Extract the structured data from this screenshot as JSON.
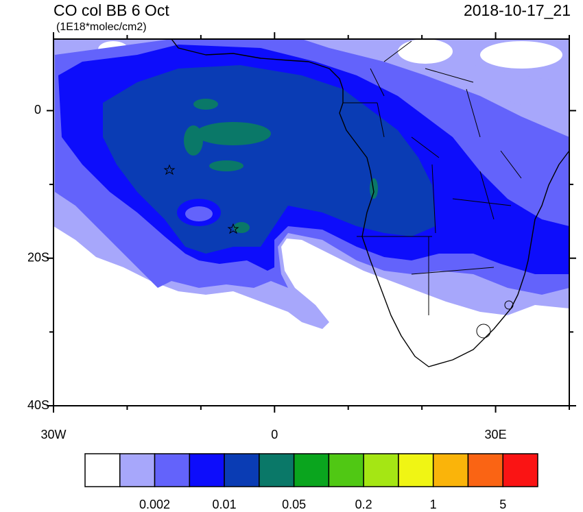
{
  "title": "CO col BB 6 Oct",
  "units": "(1E18*molec/cm2)",
  "valid_time": "2018-10-17_21",
  "map": {
    "xlim": [
      -30,
      40
    ],
    "ylim": [
      -40,
      9.7
    ],
    "xticks": [
      {
        "value": -30,
        "label": "30W"
      },
      0,
      {
        "value": 30,
        "label": "30E"
      }
    ],
    "yticks": [
      0,
      {
        "value": -20,
        "label": "20S"
      },
      {
        "value": -40,
        "label": "40S"
      }
    ],
    "xminorticks": [
      -20,
      -10,
      10,
      20,
      40
    ],
    "yminorticks": [
      -10,
      -30
    ]
  },
  "colorbar": {
    "colors": [
      "#ffffff",
      "#a7a7fb",
      "#6363fb",
      "#0d0dfb",
      "#0a3cb4",
      "#0a7868",
      "#0aa51e",
      "#50c814",
      "#a5e614",
      "#f0f514",
      "#fab40a",
      "#fa6414",
      "#fa1414"
    ],
    "labels": [
      0.002,
      0.01,
      0.05,
      0.2,
      1,
      5
    ]
  }
}
